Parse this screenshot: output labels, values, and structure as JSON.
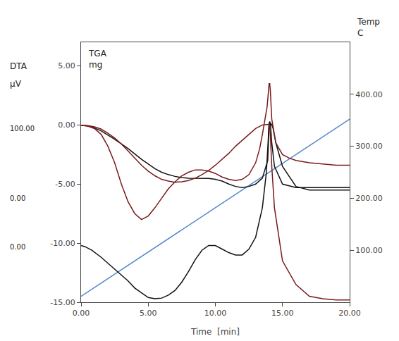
{
  "chart_data": {
    "type": "line",
    "xlabel": "Time  [min]",
    "xlim": [
      0.0,
      20.0
    ],
    "xticks": [
      {
        "value": 0.0,
        "label": "0.00"
      },
      {
        "value": 5.0,
        "label": "5.00"
      },
      {
        "value": 10.0,
        "label": "10.00"
      },
      {
        "value": 15.0,
        "label": "15.00"
      },
      {
        "value": 20.0,
        "label": "20.00"
      }
    ],
    "ylim": [
      -15.0,
      7.0
    ],
    "yticks": [
      {
        "value": -15.0,
        "label": "-15.00"
      },
      {
        "value": -10.0,
        "label": "-10.00"
      },
      {
        "value": -5.0,
        "label": "-5.00"
      },
      {
        "value": 0.0,
        "label": "0.00"
      },
      {
        "value": 5.0,
        "label": "5.00"
      }
    ],
    "y2lim": [
      0,
      500
    ],
    "y2ticks": [
      {
        "value": 100.0,
        "label": "100.00"
      },
      {
        "value": 200.0,
        "label": "200.00"
      },
      {
        "value": 300.0,
        "label": "300.00"
      },
      {
        "value": 400.0,
        "label": "400.00"
      }
    ],
    "grid": false,
    "annotations": [
      "DTA",
      "µV",
      "TGA\nmg",
      "Temp\nC",
      "100.00",
      "0.00",
      "0.00"
    ],
    "series": [
      {
        "color": "#5588cc",
        "x": [
          0.0,
          20.0
        ],
        "values": [
          -14.5,
          0.5
        ]
      },
      {
        "color": "#111111",
        "x": [
          0.0,
          0.3,
          0.8,
          1.5,
          2.5,
          3.5,
          4.5,
          5.0,
          5.5,
          6.0,
          6.5,
          7.0,
          7.5,
          8.0,
          8.5,
          9.0,
          9.5,
          10.0,
          10.5,
          11.0,
          11.5,
          12.0,
          12.5,
          13.0,
          13.5,
          13.9,
          14.0,
          14.1,
          14.15,
          14.2,
          14.3,
          14.5,
          15.0,
          16.0,
          17.0,
          18.0,
          19.0,
          20.0
        ],
        "values": [
          -0.02,
          -0.05,
          -0.15,
          -0.5,
          -1.2,
          -2.0,
          -2.9,
          -3.3,
          -3.7,
          -4.0,
          -4.2,
          -4.35,
          -4.45,
          -4.5,
          -4.5,
          -4.5,
          -4.52,
          -4.6,
          -4.75,
          -5.0,
          -5.2,
          -5.3,
          -5.2,
          -5.0,
          -4.5,
          -3.0,
          0.05,
          0.05,
          0.08,
          0.05,
          -0.3,
          -1.5,
          -3.5,
          -5.2,
          -5.5,
          -5.5,
          -5.5,
          -5.5
        ]
      },
      {
        "color": "#111111",
        "x": [
          0.0,
          0.3,
          0.8,
          1.5,
          2.5,
          3.5,
          4.0,
          4.5,
          5.0,
          5.5,
          6.0,
          6.5,
          7.0,
          7.5,
          8.0,
          8.5,
          9.0,
          9.5,
          10.0,
          10.5,
          11.0,
          11.5,
          12.0,
          12.5,
          13.0,
          13.5,
          13.8,
          13.9,
          14.0,
          14.05,
          14.1,
          14.2,
          14.4,
          15.0,
          16.0,
          17.0,
          18.0,
          19.0,
          20.0
        ],
        "values": [
          -10.2,
          -10.3,
          -10.6,
          -11.2,
          -12.2,
          -13.2,
          -13.8,
          -14.2,
          -14.6,
          -14.7,
          -14.65,
          -14.4,
          -14.0,
          -13.3,
          -12.4,
          -11.4,
          -10.6,
          -10.2,
          -10.2,
          -10.5,
          -10.8,
          -11.0,
          -11.0,
          -10.5,
          -9.5,
          -7.0,
          -4.0,
          -2.0,
          0.1,
          0.3,
          0.1,
          -1.5,
          -3.5,
          -5.0,
          -5.3,
          -5.3,
          -5.3,
          -5.3,
          -5.3
        ]
      },
      {
        "color": "#7a1a1a",
        "x": [
          0.0,
          0.5,
          1.0,
          1.5,
          2.0,
          2.5,
          3.0,
          3.5,
          4.0,
          4.5,
          5.0,
          5.5,
          6.0,
          6.5,
          7.0,
          7.5,
          8.0,
          8.5,
          9.0,
          9.5,
          10.0,
          10.5,
          11.0,
          11.5,
          12.0,
          12.5,
          13.0,
          13.5,
          13.8,
          13.95,
          14.0,
          14.05,
          14.1,
          14.2,
          14.4,
          15.0,
          16.0,
          17.0,
          18.0,
          19.0,
          20.0
        ],
        "values": [
          -0.02,
          -0.05,
          -0.15,
          -0.35,
          -0.7,
          -1.1,
          -1.6,
          -2.2,
          -2.8,
          -3.4,
          -3.9,
          -4.3,
          -4.6,
          -4.75,
          -4.85,
          -4.8,
          -4.7,
          -4.5,
          -4.2,
          -3.85,
          -3.4,
          -2.9,
          -2.4,
          -1.8,
          -1.3,
          -0.8,
          -0.3,
          0.0,
          0.05,
          0.05,
          0.03,
          -0.2,
          -1.0,
          -3.5,
          -7.0,
          -11.5,
          -13.5,
          -14.5,
          -14.7,
          -14.8,
          -14.8
        ]
      },
      {
        "color": "#7a1a1a",
        "x": [
          0.0,
          0.5,
          1.0,
          1.5,
          2.0,
          2.5,
          3.0,
          3.5,
          4.0,
          4.5,
          5.0,
          5.5,
          6.0,
          6.5,
          7.0,
          7.5,
          8.0,
          8.5,
          9.0,
          9.5,
          10.0,
          10.5,
          11.0,
          11.5,
          12.0,
          12.5,
          13.0,
          13.3,
          13.5,
          13.7,
          13.85,
          13.95,
          14.0,
          14.05,
          14.1,
          14.2,
          14.5,
          15.0,
          15.5,
          16.0,
          17.0,
          18.0,
          19.0,
          20.0
        ],
        "values": [
          -0.02,
          -0.1,
          -0.3,
          -0.8,
          -1.8,
          -3.2,
          -5.0,
          -6.5,
          -7.5,
          -8.0,
          -7.7,
          -7.0,
          -6.2,
          -5.4,
          -4.8,
          -4.3,
          -4.0,
          -3.8,
          -3.8,
          -3.9,
          -4.1,
          -4.4,
          -4.6,
          -4.7,
          -4.6,
          -4.2,
          -3.2,
          -2.0,
          -0.8,
          0.5,
          1.5,
          2.8,
          3.5,
          3.5,
          2.8,
          0.5,
          -1.5,
          -2.5,
          -2.8,
          -3.0,
          -3.2,
          -3.3,
          -3.4,
          -3.4
        ]
      }
    ]
  }
}
